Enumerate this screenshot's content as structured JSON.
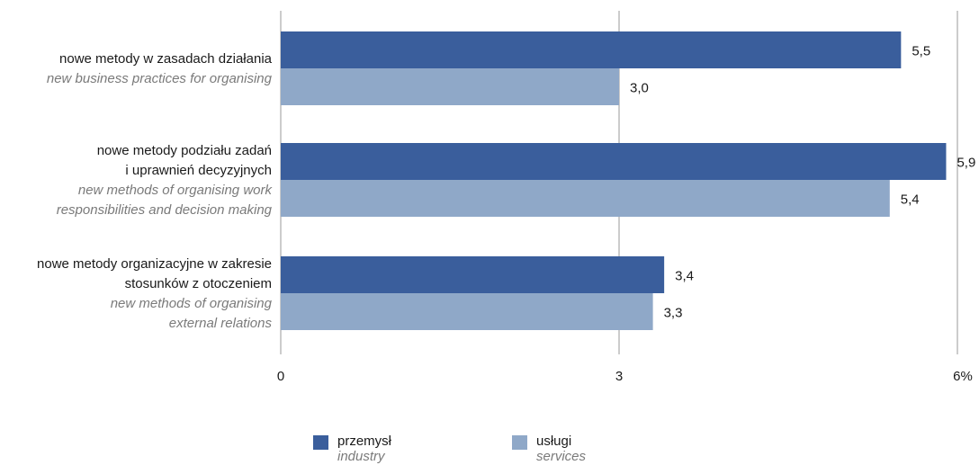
{
  "chart_data": {
    "type": "bar",
    "orientation": "horizontal",
    "categories": [
      {
        "pl": [
          "nowe metody w zasadach działania"
        ],
        "en": [
          "new business practices for organising"
        ]
      },
      {
        "pl": [
          "nowe metody podziału zadań",
          "i uprawnień decyzyjnych"
        ],
        "en": [
          "new methods of organising work",
          "responsibilities and decision making"
        ]
      },
      {
        "pl": [
          "nowe metody organizacyjne w zakresie",
          "stosunków z otoczeniem"
        ],
        "en": [
          "new methods of organising",
          "external relations"
        ]
      }
    ],
    "series": [
      {
        "name": "przemysł",
        "name_en": "industry",
        "color": "#3a5e9c",
        "values": [
          5.5,
          5.9,
          3.4
        ],
        "labels": [
          "5,5",
          "5,9",
          "3,4"
        ]
      },
      {
        "name": "usługi",
        "name_en": "services",
        "color": "#8fa8c8",
        "values": [
          3.0,
          5.4,
          3.3
        ],
        "labels": [
          "3,0",
          "5,4",
          "3,3"
        ]
      }
    ],
    "xlim": [
      0,
      6
    ],
    "xticks": [
      {
        "value": 0,
        "label": "0"
      },
      {
        "value": 3,
        "label": "3"
      },
      {
        "value": 6,
        "label": "6%"
      }
    ],
    "grid": true,
    "legend_position": "bottom"
  }
}
